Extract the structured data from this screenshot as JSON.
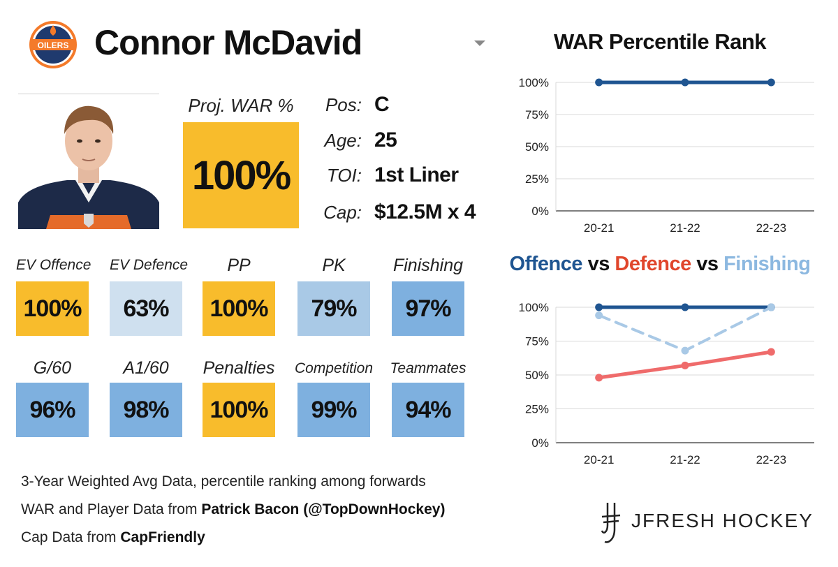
{
  "player": {
    "name": "Connor McDavid",
    "team_logo_text": "OILERS",
    "proj_war_label": "Proj. WAR %",
    "proj_war_value": "100%"
  },
  "info": [
    {
      "label": "Pos:",
      "value": "C"
    },
    {
      "label": "Age:",
      "value": "25"
    },
    {
      "label": "TOI:",
      "value": "1st Liner"
    },
    {
      "label": "Cap:",
      "value": "$12.5M x 4"
    }
  ],
  "stats": [
    {
      "label": "EV Offence",
      "value": "100%",
      "color": "#f8bc2c"
    },
    {
      "label": "EV Defence",
      "value": "63%",
      "color": "#cfe0ef"
    },
    {
      "label": "PP",
      "value": "100%",
      "color": "#f8bc2c"
    },
    {
      "label": "PK",
      "value": "79%",
      "color": "#a9c9e6"
    },
    {
      "label": "Finishing",
      "value": "97%",
      "color": "#7eb0df"
    },
    {
      "label": "G/60",
      "value": "96%",
      "color": "#7eb0df"
    },
    {
      "label": "A1/60",
      "value": "98%",
      "color": "#7eb0df"
    },
    {
      "label": "Penalties",
      "value": "100%",
      "color": "#f8bc2c"
    },
    {
      "label": "Competition",
      "value": "99%",
      "color": "#7eb0df"
    },
    {
      "label": "Teammates",
      "value": "94%",
      "color": "#7eb0df"
    }
  ],
  "footer": {
    "line1": "3-Year Weighted Avg Data, percentile ranking among forwards",
    "line2_prefix": "WAR and Player Data from ",
    "line2_bold": "Patrick Bacon (@TopDownHockey)",
    "line3_prefix": "Cap Data from ",
    "line3_bold": "CapFriendly",
    "brand": "JFRESH HOCKEY"
  },
  "colors": {
    "gold": "#f8bc2c",
    "offence": "#1f5591",
    "defence": "#ef6b6b",
    "finishing": "#a9c9e6",
    "defence_title": "#e0462c",
    "finishing_title": "#8cb8e0"
  },
  "chart_data": [
    {
      "type": "line",
      "title": "WAR Percentile Rank",
      "categories": [
        "20-21",
        "21-22",
        "22-23"
      ],
      "series": [
        {
          "values": [
            100,
            100,
            100
          ],
          "color": "#1f5591",
          "dashed": false
        }
      ],
      "ylim": [
        0,
        100
      ],
      "yticks": [
        "0%",
        "25%",
        "50%",
        "75%",
        "100%"
      ],
      "grid": true
    },
    {
      "type": "line",
      "title_parts": [
        {
          "text": "Offence",
          "color": "#1f5591"
        },
        {
          "text": " vs ",
          "color": "#111111"
        },
        {
          "text": "Defence",
          "color": "#e0462c"
        },
        {
          "text": " vs ",
          "color": "#111111"
        },
        {
          "text": "Finishing",
          "color": "#8cb8e0"
        }
      ],
      "categories": [
        "20-21",
        "21-22",
        "22-23"
      ],
      "series": [
        {
          "name": "Offence",
          "values": [
            100,
            100,
            100
          ],
          "color": "#1f5591",
          "dashed": false
        },
        {
          "name": "Finishing",
          "values": [
            94,
            68,
            100
          ],
          "color": "#a9c9e6",
          "dashed": true
        },
        {
          "name": "Defence",
          "values": [
            48,
            57,
            67
          ],
          "color": "#ef6b6b",
          "dashed": false
        }
      ],
      "ylim": [
        0,
        100
      ],
      "yticks": [
        "0%",
        "25%",
        "50%",
        "75%",
        "100%"
      ],
      "grid": true
    }
  ]
}
